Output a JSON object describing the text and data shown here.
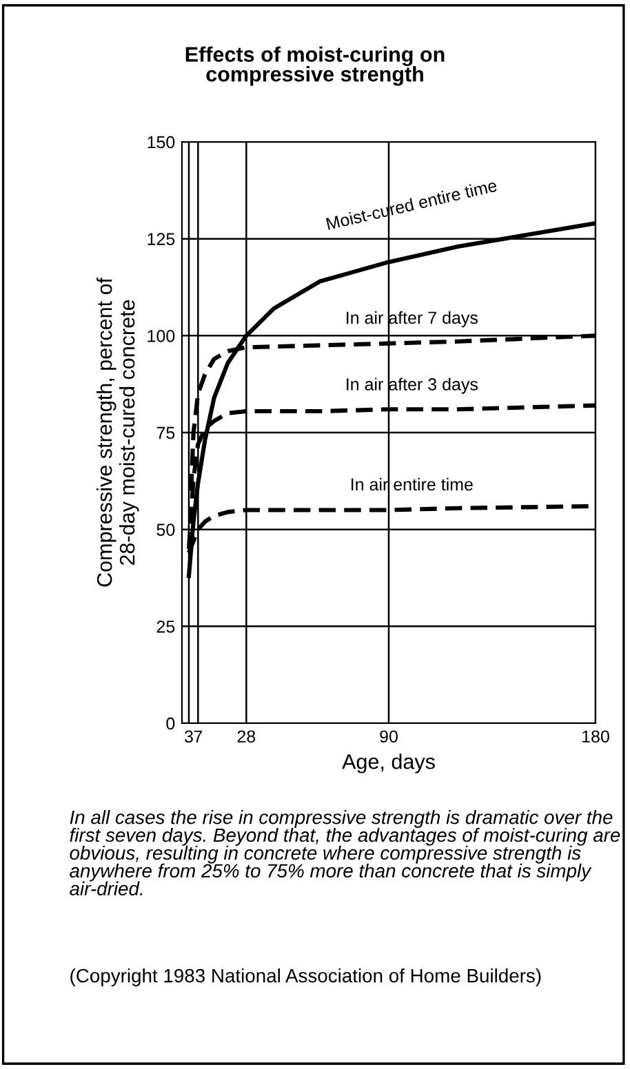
{
  "chart_data": {
    "type": "line",
    "title": "Effects of moist-curing on\ncompressive strength",
    "xlabel": "Age, days",
    "ylabel": "Compressive strength, percent of\n28-day moist-cured concrete",
    "xlim": [
      0,
      180
    ],
    "xticks": [
      3,
      7,
      28,
      90,
      180
    ],
    "ylim": [
      0,
      150
    ],
    "yticks": [
      0,
      25,
      50,
      75,
      100,
      125,
      150
    ],
    "grid": true,
    "legend": false,
    "series": [
      {
        "name": "Moist-cured entire time",
        "color": "#000000",
        "line_style": "solid",
        "x": [
          3,
          5,
          7,
          10,
          14,
          20,
          28,
          40,
          60,
          90,
          120,
          150,
          180
        ],
        "values": [
          38,
          52,
          62,
          73,
          84,
          93,
          100,
          107,
          114,
          119,
          123,
          126,
          129
        ]
      },
      {
        "name": "In air after 7 days",
        "color": "#000000",
        "line_style": "dashed",
        "x": [
          4,
          5,
          7,
          10,
          14,
          20,
          28,
          60,
          90,
          120,
          180
        ],
        "values": [
          60,
          75,
          85,
          90,
          94,
          96,
          97,
          97.5,
          98,
          98.5,
          100
        ]
      },
      {
        "name": "In air after 3 days",
        "color": "#000000",
        "line_style": "dashed",
        "x": [
          3,
          5,
          7,
          10,
          14,
          20,
          28,
          60,
          90,
          120,
          180
        ],
        "values": [
          45,
          63,
          72,
          76,
          78,
          80,
          80.5,
          80.5,
          81,
          81,
          82
        ]
      },
      {
        "name": "In air entire time",
        "color": "#000000",
        "line_style": "dashed",
        "x": [
          3,
          5,
          7,
          10,
          14,
          20,
          28,
          60,
          90,
          120,
          180
        ],
        "values": [
          44,
          47,
          50,
          52,
          53.5,
          54.5,
          55,
          55,
          55,
          55.5,
          56
        ]
      }
    ],
    "annotations": [
      "In all cases the rise in compressive strength is dramatic over the first seven days. Beyond that, the advantages of moist-curing are obvious, resulting in concrete where compressive strength is anywhere from 25% to 75% more than concrete that is simply air-dried.",
      "(Copyright 1983 National Association of Home Builders)"
    ]
  }
}
